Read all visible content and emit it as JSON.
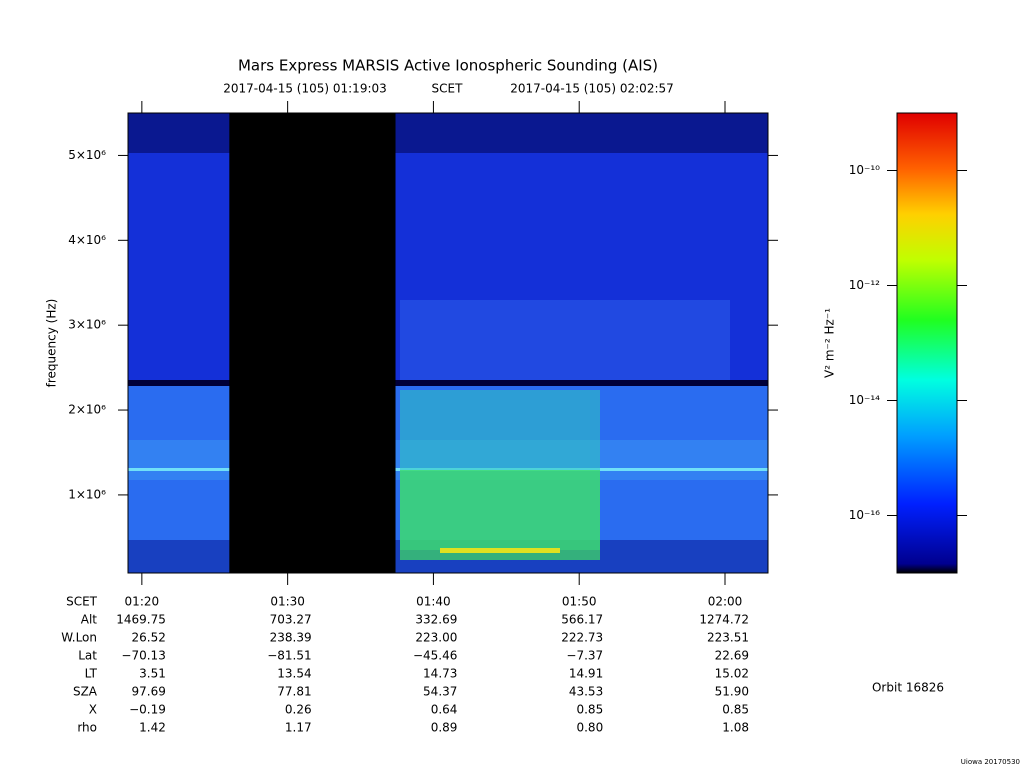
{
  "chart_data": {
    "type": "spectrogram",
    "title": "Mars Express MARSIS Active Ionospheric Sounding (AIS)",
    "start_time": "2017-04-15 (105) 01:19:03",
    "time_system": "SCET",
    "end_time": "2017-04-15 (105) 02:02:57",
    "ylabel": "frequency (Hz)",
    "xlim": [
      79.05,
      122.95
    ],
    "xticks": [
      {
        "value": 80,
        "label": "01:20"
      },
      {
        "value": 90,
        "label": "01:30"
      },
      {
        "value": 100,
        "label": "01:40"
      },
      {
        "value": 110,
        "label": "01:50"
      },
      {
        "value": 120,
        "label": "02:00"
      }
    ],
    "ylim": [
      80000,
      5500000
    ],
    "yticks": [
      {
        "value": 1000000,
        "label": "1×10⁶"
      },
      {
        "value": 2000000,
        "label": "2×10⁶"
      },
      {
        "value": 3000000,
        "label": "3×10⁶"
      },
      {
        "value": 4000000,
        "label": "4×10⁶"
      },
      {
        "value": 5000000,
        "label": "5×10⁶"
      }
    ],
    "gaps": [
      [
        86.0,
        97.4
      ]
    ],
    "colorbar": {
      "label": "V² m⁻² Hz⁻¹",
      "log_scale": true,
      "lim": [
        1e-17,
        1e-09
      ],
      "ticks": [
        {
          "value": 1e-10,
          "label": "10⁻¹⁰"
        },
        {
          "value": 1e-12,
          "label": "10⁻¹²"
        },
        {
          "value": 1e-14,
          "label": "10⁻¹⁴"
        },
        {
          "value": 1e-16,
          "label": "10⁻¹⁶"
        }
      ]
    },
    "ephemeris": {
      "row_labels": [
        "SCET",
        "Alt",
        "W.Lon",
        "Lat",
        "LT",
        "SZA",
        "X",
        "rho"
      ],
      "rows": [
        [
          "1469.75",
          "703.27",
          "332.69",
          "566.17",
          "1274.72"
        ],
        [
          "26.52",
          "238.39",
          "223.00",
          "222.73",
          "223.51"
        ],
        [
          "−70.13",
          "−81.51",
          "−45.46",
          "−7.37",
          "22.69"
        ],
        [
          "3.51",
          "13.54",
          "14.73",
          "14.91",
          "15.02"
        ],
        [
          "97.69",
          "77.81",
          "54.37",
          "43.53",
          "51.90"
        ],
        [
          "−0.19",
          "0.26",
          "0.64",
          "0.85",
          "0.85"
        ],
        [
          "1.42",
          "1.17",
          "0.89",
          "0.80",
          "1.08"
        ]
      ]
    },
    "orbit": "Orbit 16826",
    "credit": "Uiowa 20170530"
  }
}
